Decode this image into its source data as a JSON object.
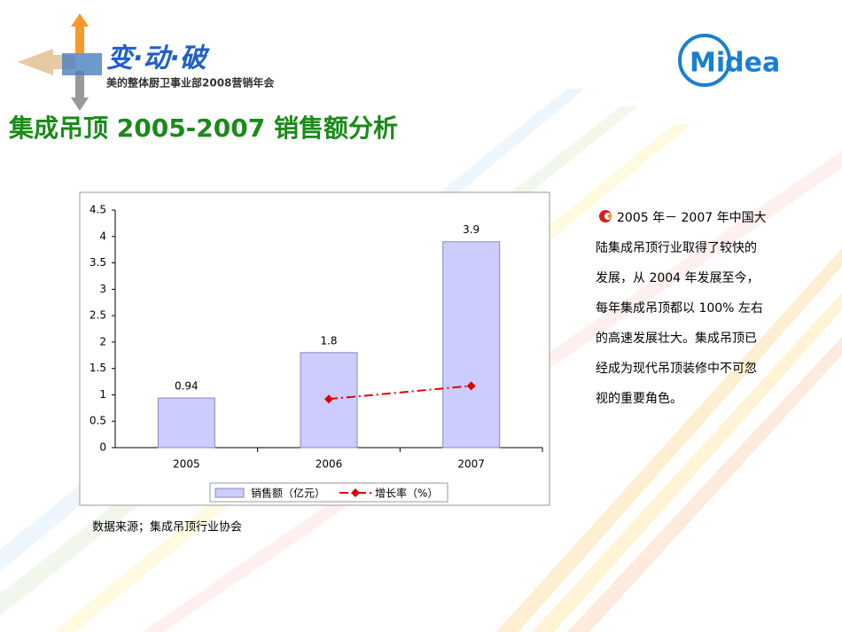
{
  "header": {
    "logo": "变·动·破",
    "subtitle": "美的整体厨卫事业部2008营销年会",
    "brand": "Midea"
  },
  "title": "集成吊顶 2005-2007 销售额分析",
  "chart_data": {
    "type": "bar",
    "categories": [
      "2005",
      "2006",
      "2007"
    ],
    "series": [
      {
        "name": "销售额（亿元）",
        "type": "bar",
        "color": "#ccccff",
        "values": [
          0.94,
          1.8,
          3.9
        ]
      },
      {
        "name": "增长率（%）",
        "type": "line",
        "color": "#e00000",
        "values": [
          null,
          0.92,
          1.17
        ]
      }
    ],
    "ylim": [
      0,
      4.5
    ],
    "yticks": [
      0,
      0.5,
      1,
      1.5,
      2,
      2.5,
      3,
      3.5,
      4,
      4.5
    ],
    "grid": false,
    "legend": "bottom"
  },
  "source": "数据来源；集成吊顶行业协会",
  "body": {
    "lines": [
      "2005 年－ 2007 年中国大",
      "陆集成吊顶行业取得了较快的",
      "发展，从 2004 年发展至今，",
      "每年集成吊顶都以 100% 左右",
      "的高速发展壮大。集成吊顶已",
      "经成为现代吊顶装修中不可忽",
      "视的重要角色。"
    ]
  }
}
